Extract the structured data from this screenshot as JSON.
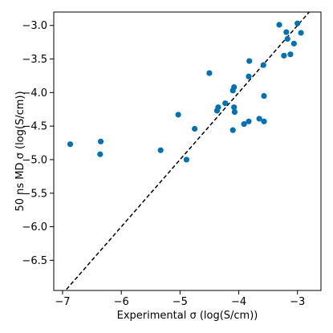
{
  "chart_data": {
    "type": "scatter",
    "title": "",
    "xlabel": "Experimental σ (log(S/cm))",
    "ylabel": "50 ns MD σ (log(S/cm))",
    "xlim": [
      -7.15,
      -2.6
    ],
    "ylim": [
      -6.95,
      -2.8
    ],
    "xticks": [
      -7,
      -6,
      -5,
      -4,
      -3
    ],
    "xtick_labels": [
      "−7",
      "−6",
      "−5",
      "−4",
      "−3"
    ],
    "yticks": [
      -6.5,
      -6.0,
      -5.5,
      -5.0,
      -4.5,
      -4.0,
      -3.5,
      -3.0
    ],
    "ytick_labels": [
      "−6.5",
      "−6.0",
      "−5.5",
      "−5.0",
      "−4.5",
      "−4.0",
      "−3.5",
      "−3.0"
    ],
    "grid": false,
    "marker_color": "#0072B2",
    "reference_line": {
      "style": "dashed",
      "color": "#000000",
      "x": [
        -7.15,
        -2.6
      ],
      "y": [
        -7.15,
        -2.6
      ]
    },
    "points": [
      {
        "x": -6.87,
        "y": -4.77
      },
      {
        "x": -6.35,
        "y": -4.73
      },
      {
        "x": -6.36,
        "y": -4.92
      },
      {
        "x": -5.33,
        "y": -4.86
      },
      {
        "x": -5.03,
        "y": -4.33
      },
      {
        "x": -4.89,
        "y": -5.0
      },
      {
        "x": -4.75,
        "y": -4.54
      },
      {
        "x": -4.5,
        "y": -3.71
      },
      {
        "x": -4.37,
        "y": -4.27
      },
      {
        "x": -4.35,
        "y": -4.22
      },
      {
        "x": -4.23,
        "y": -4.16
      },
      {
        "x": -4.1,
        "y": -3.97
      },
      {
        "x": -4.08,
        "y": -3.92
      },
      {
        "x": -4.08,
        "y": -4.22
      },
      {
        "x": -4.07,
        "y": -4.29
      },
      {
        "x": -4.1,
        "y": -4.56
      },
      {
        "x": -3.91,
        "y": -4.47
      },
      {
        "x": -3.83,
        "y": -4.43
      },
      {
        "x": -3.83,
        "y": -3.76
      },
      {
        "x": -3.82,
        "y": -3.53
      },
      {
        "x": -3.65,
        "y": -4.39
      },
      {
        "x": -3.58,
        "y": -3.59
      },
      {
        "x": -3.57,
        "y": -4.05
      },
      {
        "x": -3.57,
        "y": -4.43
      },
      {
        "x": -3.31,
        "y": -2.99
      },
      {
        "x": -3.23,
        "y": -3.45
      },
      {
        "x": -3.19,
        "y": -3.1
      },
      {
        "x": -3.17,
        "y": -3.2
      },
      {
        "x": -3.12,
        "y": -3.43
      },
      {
        "x": -3.06,
        "y": -3.27
      },
      {
        "x": -3.0,
        "y": -2.97
      },
      {
        "x": -2.94,
        "y": -3.11
      }
    ]
  }
}
